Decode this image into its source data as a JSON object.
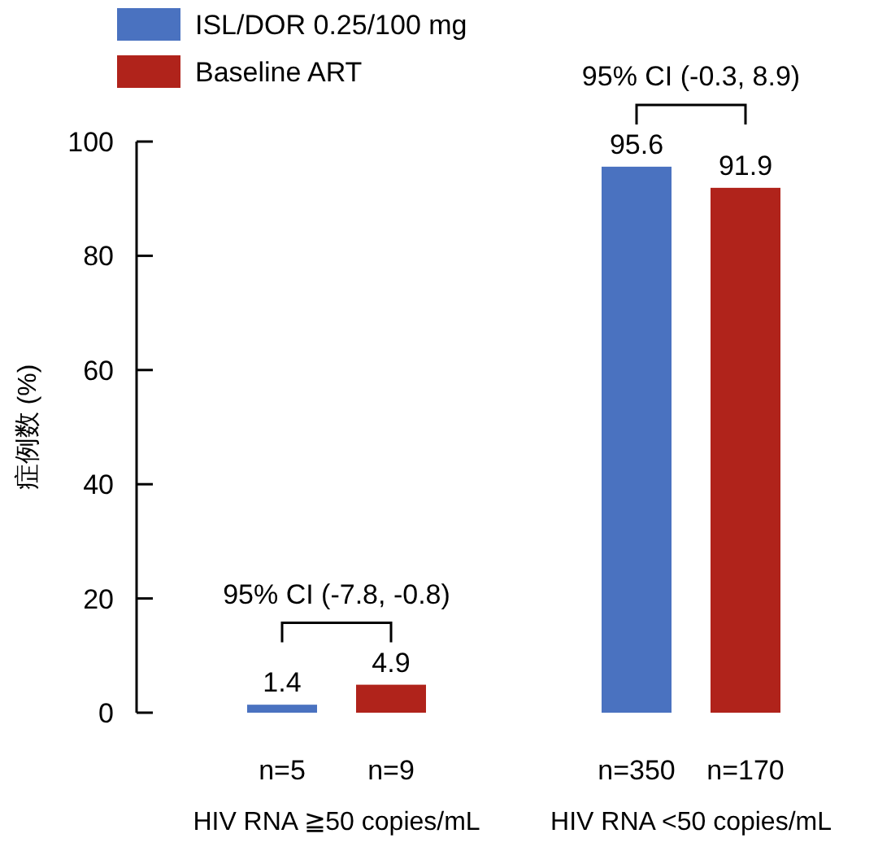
{
  "chart_data": {
    "type": "bar",
    "ylabel": "症例数 (%)",
    "categories": [
      "HIV RNA ≧50 copies/mL",
      "HIV RNA <50 copies/mL"
    ],
    "series": [
      {
        "name": "ISL/DOR 0.25/100 mg",
        "color": "#4a72c0",
        "values": [
          1.4,
          95.6
        ]
      },
      {
        "name": "Baseline ART",
        "color": "#b0231b",
        "values": [
          4.9,
          91.9
        ]
      }
    ],
    "ylim": [
      0,
      100
    ],
    "yticks": [
      0,
      20,
      40,
      60,
      80,
      100
    ],
    "data_labels": true,
    "grid": false,
    "legend": "top left",
    "annotations": [
      "n=5",
      "n=9",
      "n=350",
      "n=170",
      "95% CI (-7.8, -0.8)",
      "95% CI (-0.3, 8.9)"
    ]
  }
}
